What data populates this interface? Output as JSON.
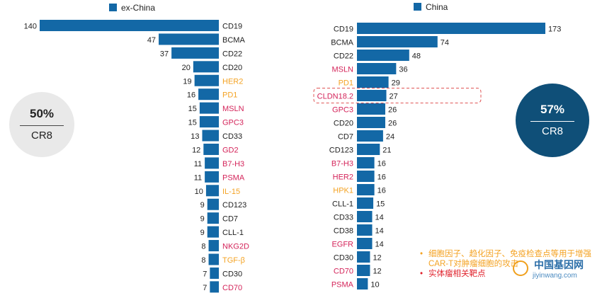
{
  "chart_data": [
    {
      "type": "bar",
      "orientation": "horizontal",
      "legend": "ex-China",
      "legend_position": "top",
      "bar_color": "#1368a6",
      "categories": [
        "CD19",
        "BCMA",
        "CD22",
        "CD20",
        "HER2",
        "PD1",
        "MSLN",
        "GPC3",
        "CD33",
        "GD2",
        "B7-H3",
        "PSMA",
        "IL-15",
        "CD123",
        "CD7",
        "CLL-1",
        "NKG2D",
        "TGF-β",
        "CD30",
        "CD70"
      ],
      "values": [
        140,
        47,
        37,
        20,
        19,
        16,
        15,
        15,
        13,
        12,
        11,
        11,
        10,
        9,
        9,
        9,
        8,
        8,
        7,
        7
      ],
      "label_colors": [
        "#222222",
        "#222222",
        "#222222",
        "#222222",
        "#f4a324",
        "#f4a324",
        "#d4245a",
        "#d4245a",
        "#222222",
        "#d4245a",
        "#d4245a",
        "#d4245a",
        "#f4a324",
        "#222222",
        "#222222",
        "#222222",
        "#d4245a",
        "#f4a324",
        "#222222",
        "#d4245a"
      ],
      "badge": {
        "value": "50%",
        "label": "CR8"
      }
    },
    {
      "type": "bar",
      "orientation": "horizontal",
      "legend": "China",
      "legend_position": "top",
      "bar_color": "#1368a6",
      "categories": [
        "CD19",
        "BCMA",
        "CD22",
        "MSLN",
        "PD1",
        "CLDN18.2",
        "GPC3",
        "CD20",
        "CD7",
        "CD123",
        "B7-H3",
        "HER2",
        "HPK1",
        "CLL-1",
        "CD33",
        "CD38",
        "EGFR",
        "CD30",
        "CD70",
        "PSMA"
      ],
      "values": [
        173,
        74,
        48,
        36,
        29,
        27,
        26,
        26,
        24,
        21,
        16,
        16,
        16,
        15,
        14,
        14,
        14,
        12,
        12,
        10
      ],
      "label_colors": [
        "#222222",
        "#222222",
        "#222222",
        "#d4245a",
        "#f4a324",
        "#d4245a",
        "#d4245a",
        "#222222",
        "#222222",
        "#222222",
        "#d4245a",
        "#d4245a",
        "#f4a324",
        "#222222",
        "#222222",
        "#222222",
        "#d4245a",
        "#222222",
        "#d4245a",
        "#d4245a"
      ],
      "highlighted_category": "CLDN18.2",
      "highlight_color": "#e05555",
      "badge": {
        "value": "57%",
        "label": "CR8"
      }
    }
  ],
  "notes": [
    {
      "text": "细胞因子、趋化因子、免疫检查点等用于增强CAR-T对肿瘤细胞的攻击",
      "color": "#f4a324"
    },
    {
      "text": "实体瘤相关靶点",
      "color": "#e0232d"
    }
  ],
  "bullet": "•",
  "watermark": {
    "title": "中国基因网",
    "url": "jiyinwang.com"
  }
}
